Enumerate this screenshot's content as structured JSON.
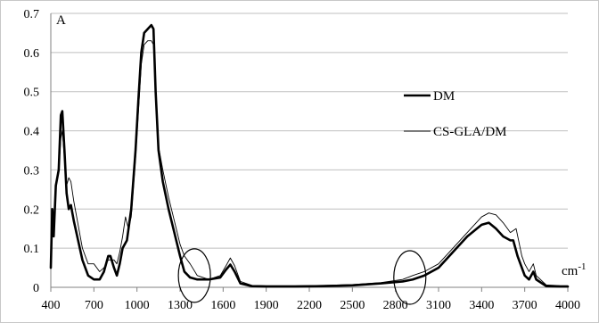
{
  "chart_data": {
    "type": "line",
    "ylabel": "A",
    "xlabel": "cm-1",
    "xlabel_base": "cm",
    "xlabel_sup": "-1",
    "xlim": [
      400,
      4000
    ],
    "ylim": [
      0,
      0.7
    ],
    "grid": true,
    "legend_position": "right, upper-middle",
    "x_ticks": [
      "400",
      "700",
      "1000",
      "1300",
      "1600",
      "1900",
      "2200",
      "2500",
      "2800",
      "3100",
      "3400",
      "3700",
      "4000"
    ],
    "y_ticks": [
      "0",
      "0.1",
      "0.2",
      "0.3",
      "0.4",
      "0.5",
      "0.6",
      "0.7"
    ],
    "series": [
      {
        "name": "DM",
        "color": "#000000",
        "style": "thick",
        "points": [
          [
            400,
            0.05
          ],
          [
            410,
            0.2
          ],
          [
            420,
            0.13
          ],
          [
            435,
            0.26
          ],
          [
            455,
            0.3
          ],
          [
            470,
            0.44
          ],
          [
            480,
            0.45
          ],
          [
            495,
            0.35
          ],
          [
            510,
            0.24
          ],
          [
            525,
            0.2
          ],
          [
            540,
            0.21
          ],
          [
            560,
            0.17
          ],
          [
            590,
            0.12
          ],
          [
            620,
            0.07
          ],
          [
            660,
            0.03
          ],
          [
            700,
            0.02
          ],
          [
            740,
            0.02
          ],
          [
            770,
            0.04
          ],
          [
            800,
            0.08
          ],
          [
            815,
            0.08
          ],
          [
            840,
            0.05
          ],
          [
            860,
            0.03
          ],
          [
            880,
            0.06
          ],
          [
            900,
            0.1
          ],
          [
            930,
            0.12
          ],
          [
            960,
            0.2
          ],
          [
            990,
            0.35
          ],
          [
            1010,
            0.48
          ],
          [
            1030,
            0.6
          ],
          [
            1050,
            0.65
          ],
          [
            1075,
            0.66
          ],
          [
            1100,
            0.67
          ],
          [
            1115,
            0.66
          ],
          [
            1130,
            0.5
          ],
          [
            1150,
            0.35
          ],
          [
            1180,
            0.27
          ],
          [
            1220,
            0.2
          ],
          [
            1260,
            0.14
          ],
          [
            1300,
            0.08
          ],
          [
            1330,
            0.04
          ],
          [
            1370,
            0.025
          ],
          [
            1420,
            0.02
          ],
          [
            1500,
            0.02
          ],
          [
            1580,
            0.025
          ],
          [
            1620,
            0.045
          ],
          [
            1650,
            0.058
          ],
          [
            1680,
            0.04
          ],
          [
            1720,
            0.01
          ],
          [
            1800,
            0.003
          ],
          [
            1900,
            0.002
          ],
          [
            2100,
            0.002
          ],
          [
            2300,
            0.003
          ],
          [
            2500,
            0.005
          ],
          [
            2700,
            0.01
          ],
          [
            2850,
            0.015
          ],
          [
            2920,
            0.02
          ],
          [
            3000,
            0.03
          ],
          [
            3100,
            0.05
          ],
          [
            3200,
            0.09
          ],
          [
            3300,
            0.13
          ],
          [
            3400,
            0.16
          ],
          [
            3450,
            0.165
          ],
          [
            3500,
            0.15
          ],
          [
            3550,
            0.13
          ],
          [
            3600,
            0.12
          ],
          [
            3620,
            0.12
          ],
          [
            3650,
            0.08
          ],
          [
            3680,
            0.05
          ],
          [
            3700,
            0.03
          ],
          [
            3730,
            0.02
          ],
          [
            3760,
            0.04
          ],
          [
            3780,
            0.02
          ],
          [
            3850,
            0.003
          ],
          [
            3950,
            0.002
          ],
          [
            4000,
            0.002
          ]
        ]
      },
      {
        "name": "CS-GLA/DM",
        "color": "#000000",
        "style": "thin",
        "points": [
          [
            400,
            0.07
          ],
          [
            410,
            0.18
          ],
          [
            420,
            0.17
          ],
          [
            435,
            0.25
          ],
          [
            455,
            0.3
          ],
          [
            470,
            0.38
          ],
          [
            480,
            0.4
          ],
          [
            495,
            0.33
          ],
          [
            510,
            0.26
          ],
          [
            525,
            0.28
          ],
          [
            540,
            0.27
          ],
          [
            560,
            0.22
          ],
          [
            590,
            0.16
          ],
          [
            620,
            0.1
          ],
          [
            660,
            0.06
          ],
          [
            700,
            0.06
          ],
          [
            740,
            0.04
          ],
          [
            770,
            0.05
          ],
          [
            800,
            0.07
          ],
          [
            815,
            0.07
          ],
          [
            840,
            0.07
          ],
          [
            860,
            0.06
          ],
          [
            880,
            0.09
          ],
          [
            900,
            0.13
          ],
          [
            920,
            0.18
          ],
          [
            940,
            0.15
          ],
          [
            960,
            0.18
          ],
          [
            990,
            0.33
          ],
          [
            1010,
            0.45
          ],
          [
            1030,
            0.57
          ],
          [
            1050,
            0.62
          ],
          [
            1075,
            0.63
          ],
          [
            1100,
            0.63
          ],
          [
            1115,
            0.62
          ],
          [
            1130,
            0.52
          ],
          [
            1150,
            0.36
          ],
          [
            1180,
            0.3
          ],
          [
            1220,
            0.23
          ],
          [
            1260,
            0.17
          ],
          [
            1300,
            0.11
          ],
          [
            1330,
            0.08
          ],
          [
            1370,
            0.06
          ],
          [
            1420,
            0.03
          ],
          [
            1500,
            0.02
          ],
          [
            1580,
            0.03
          ],
          [
            1620,
            0.055
          ],
          [
            1650,
            0.075
          ],
          [
            1680,
            0.055
          ],
          [
            1720,
            0.015
          ],
          [
            1800,
            0.005
          ],
          [
            1900,
            0.004
          ],
          [
            2100,
            0.004
          ],
          [
            2300,
            0.005
          ],
          [
            2500,
            0.007
          ],
          [
            2700,
            0.012
          ],
          [
            2850,
            0.02
          ],
          [
            2920,
            0.03
          ],
          [
            3000,
            0.04
          ],
          [
            3100,
            0.06
          ],
          [
            3200,
            0.1
          ],
          [
            3300,
            0.14
          ],
          [
            3400,
            0.18
          ],
          [
            3450,
            0.19
          ],
          [
            3500,
            0.185
          ],
          [
            3550,
            0.165
          ],
          [
            3600,
            0.14
          ],
          [
            3640,
            0.15
          ],
          [
            3680,
            0.08
          ],
          [
            3700,
            0.06
          ],
          [
            3730,
            0.04
          ],
          [
            3760,
            0.06
          ],
          [
            3780,
            0.03
          ],
          [
            3850,
            0.006
          ],
          [
            3950,
            0.004
          ],
          [
            4000,
            0.004
          ]
        ]
      }
    ],
    "annotations": [
      {
        "type": "ellipse",
        "x": 1400,
        "y": 0.03
      },
      {
        "type": "ellipse",
        "x": 2900,
        "y": 0.025
      }
    ]
  }
}
